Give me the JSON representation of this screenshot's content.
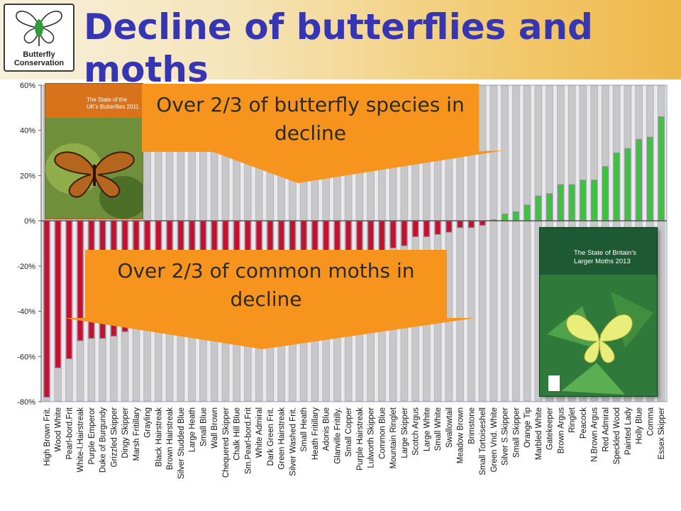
{
  "header": {
    "title": "Decline of butterflies and moths",
    "logo_text": "Butterfly Conservation"
  },
  "callouts": {
    "butterflies": "Over 2/3 of butterfly species in decline",
    "moths": "Over 2/3 of common moths in decline"
  },
  "covers": {
    "butterflies_title": "The State of the UK's Butterflies 2011",
    "moths_title": "The State of Britain's Larger Moths 2013"
  },
  "colors": {
    "decline": "#c8102e",
    "increase": "#39c639",
    "bar_outline": "#8a8a9a",
    "background_bar": "#c8c8c8",
    "callout": "#f7941d",
    "title": "#3636b4"
  },
  "chart_data": {
    "type": "bar",
    "ylim": [
      -80,
      60
    ],
    "yticks": [
      60,
      40,
      20,
      0,
      -20,
      -40,
      -60,
      -80
    ],
    "ytick_labels": [
      "60%",
      "40%",
      "20%",
      "0%",
      "-20%",
      "-40%",
      "-60%",
      "-80%"
    ],
    "grid": false,
    "categories": [
      "High Brown Frit.",
      "Wood White",
      "Pearl-bord.Frit",
      "White-l.Hairstreak",
      "Purple Emperor",
      "Duke of Burgundy",
      "Grizzled Skipper",
      "Dingy Skipper",
      "Marsh Fritillary",
      "Grayling",
      "Black Hairstreak",
      "Brown Hairstreak",
      "Silver Studded Blue",
      "Large Heath",
      "Small Blue",
      "Wall Brown",
      "Chequered Skipper",
      "Chalk Hill Blue",
      "Sm.Pearl-bord.Frit",
      "White Admiral",
      "Dark Green Frit.",
      "Green Hairstreak",
      "Silver Washed Frit.",
      "Small Heath",
      "Heath Fritillary",
      "Adonis Blue",
      "Glanville Fritilly.",
      "Small Copper",
      "Purple Hairstreak",
      "Lulworth Skipper",
      "Common Blue",
      "Mountain Ringlet",
      "Large Skipper",
      "Scotch Argus",
      "Large White",
      "Small White",
      "Swallowtail",
      "Meadow Brown",
      "Brimstone",
      "Small Tortoiseshell",
      "Green Vnd. White",
      "Silver S.Skipper",
      "Small Skipper",
      "Orange Tip",
      "Marbled White",
      "Gatekeeper",
      "Brown Argus",
      "Ringlet",
      "Peacock",
      "N.Brown Argus",
      "Red Admiral",
      "Speckled Wood",
      "Painted Lady",
      "Holly Blue",
      "Comma",
      "Essex Skipper"
    ],
    "values": [
      -78,
      -65,
      -61,
      -53,
      -52,
      -52,
      -51,
      -49,
      -47,
      -46,
      -45,
      -44,
      -43,
      -42,
      -41,
      -39,
      -38,
      -37,
      -36,
      -35,
      -34,
      -33,
      -32,
      -31,
      -30,
      -29,
      -28,
      -27,
      -26,
      -25,
      -21,
      -12,
      -11,
      -7,
      -7,
      -6,
      -5,
      -3,
      -3,
      -2,
      0.5,
      3,
      4,
      7,
      11,
      12,
      16,
      16,
      18,
      18,
      24,
      30,
      32,
      36,
      37,
      46
    ],
    "background_bar_ranges": [
      -78,
      60
    ]
  }
}
